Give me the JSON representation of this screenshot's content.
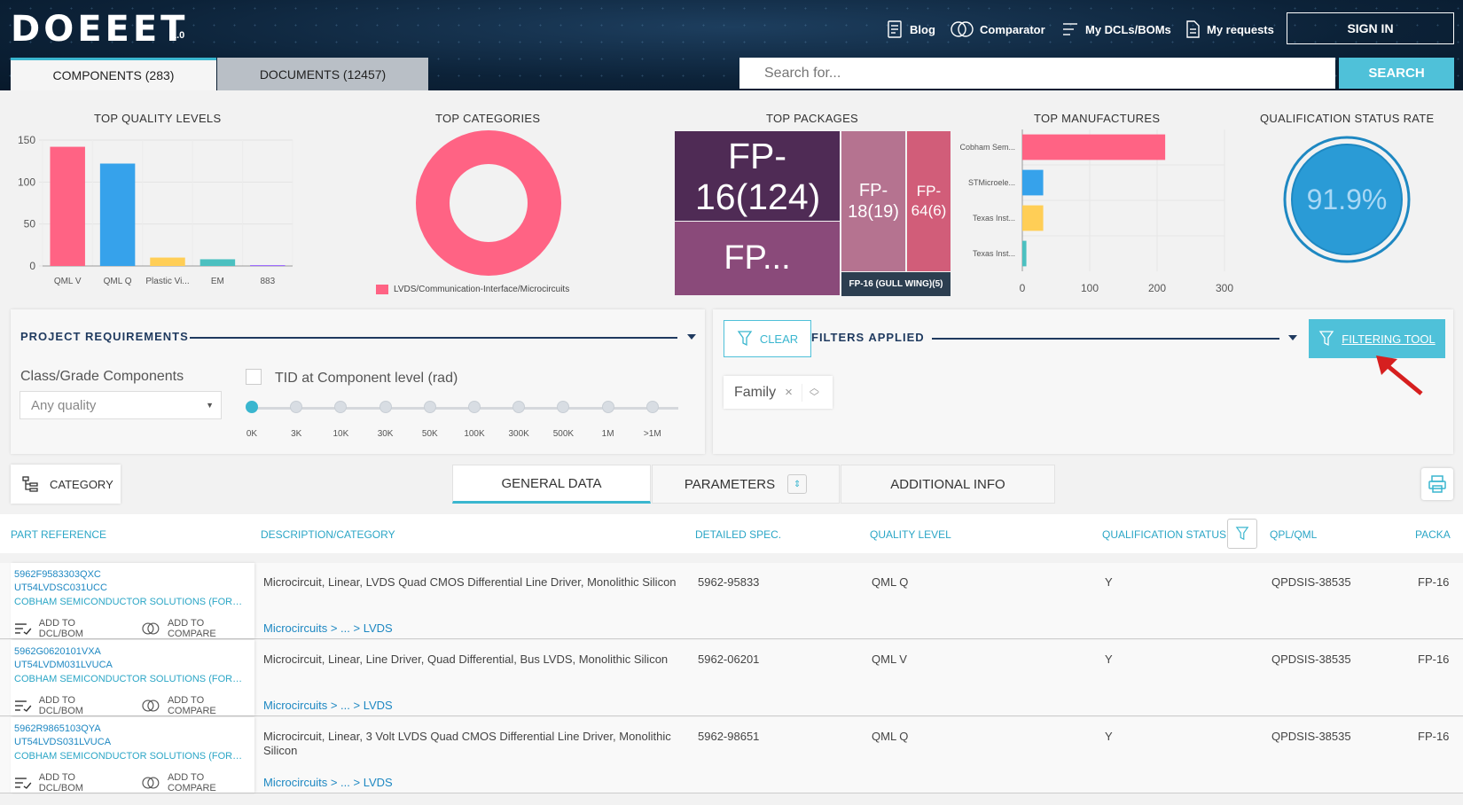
{
  "header": {
    "logo": "DOEEET",
    "version": "1.0",
    "nav": {
      "blog": "Blog",
      "comparator": "Comparator",
      "dcls": "My DCLs/BOMs",
      "requests": "My requests"
    },
    "signin": "SIGN IN",
    "tabs": {
      "components": "COMPONENTS (283)",
      "documents": "DOCUMENTS (12457)"
    },
    "search": {
      "placeholder": "Search for...",
      "button": "SEARCH"
    }
  },
  "dashboard": {
    "quality_title": "TOP QUALITY LEVELS",
    "categories_title": "TOP CATEGORIES",
    "packages_title": "TOP PACKAGES",
    "manufacturers_title": "TOP MANUFACTURES",
    "qualification_title": "QUALIFICATION STATUS RATE",
    "qualification_value": "91.9%",
    "legend_category": "LVDS/Communication-Interface/Microcircuits",
    "packages": {
      "p1": "FP-16(124)",
      "p2": "FP...",
      "p3": "FP-18(19)",
      "p4": "FP-64(6)",
      "p5": "FP-16 (GULL WING)(5)"
    }
  },
  "chart_data": [
    {
      "type": "bar",
      "title": "TOP QUALITY LEVELS",
      "categories": [
        "QML V",
        "QML Q",
        "Plastic Vi...",
        "EM",
        "883"
      ],
      "values": [
        142,
        122,
        10,
        8,
        1
      ],
      "colors": [
        "#ff6384",
        "#36a2eb",
        "#ffce56",
        "#4bc0c0",
        "#9966ff"
      ],
      "yticks": [
        0,
        50,
        100,
        150
      ],
      "ylim": [
        0,
        150
      ]
    },
    {
      "type": "pie",
      "title": "TOP CATEGORIES",
      "categories": [
        "LVDS/Communication-Interface/Microcircuits"
      ],
      "values": [
        283
      ],
      "colors": [
        "#ff6384"
      ]
    },
    {
      "type": "bar",
      "orientation": "horizontal",
      "title": "TOP MANUFACTURES",
      "categories": [
        "Cobham Sem...",
        "STMicroele...",
        "Texas Inst...",
        "Texas Inst..."
      ],
      "values": [
        212,
        31,
        31,
        6
      ],
      "colors": [
        "#ff6384",
        "#36a2eb",
        "#ffce56",
        "#4bc0c0"
      ],
      "xticks": [
        0,
        100,
        200,
        300
      ],
      "xlim": [
        0,
        300
      ]
    }
  ],
  "requirements": {
    "title": "PROJECT REQUIREMENTS",
    "class_label": "Class/Grade Components",
    "class_value": "Any quality",
    "tid_label": "TID at Component level (rad)",
    "ticks": [
      "0K",
      "3K",
      "10K",
      "30K",
      "50K",
      "100K",
      "300K",
      "500K",
      "1M",
      ">1M"
    ]
  },
  "filters": {
    "clear": "CLEAR",
    "title": "FILTERS APPLIED",
    "tool": "FILTERING TOOL",
    "chip": "Family",
    "chip_close": "×"
  },
  "table_tabs": {
    "category": "CATEGORY",
    "general": "GENERAL DATA",
    "parameters": "PARAMETERS",
    "additional": "ADDITIONAL INFO"
  },
  "columns": {
    "part": "PART REFERENCE",
    "desc": "DESCRIPTION/CATEGORY",
    "spec": "DETAILED SPEC.",
    "quality": "QUALITY LEVEL",
    "status": "QUALIFICATION STATUS",
    "qpl": "QPL/QML",
    "package": "PACKA"
  },
  "actions": {
    "dcl": "ADD TO DCL/BOM",
    "compare": "ADD TO COMPARE"
  },
  "rows": [
    {
      "ref1": "5962F9583303QXC",
      "ref2": "UT54LVDSC031UCC",
      "mfr": "COBHAM SEMICONDUCTOR SOLUTIONS (FORMERLY AEROFLEX)",
      "desc": "Microcircuit, Linear, LVDS Quad CMOS Differential Line Driver, Monolithic Silicon",
      "cat": "Microcircuits >  ...  > LVDS",
      "spec": "5962-95833",
      "quality": "QML Q",
      "status": "Y",
      "qpl": "QPDSIS-38535",
      "package": "FP-16"
    },
    {
      "ref1": "5962G0620101VXA",
      "ref2": "UT54LVDM031LVUCA",
      "mfr": "COBHAM SEMICONDUCTOR SOLUTIONS (FORMERLY AEROFLEX)",
      "desc": "Microcircuit, Linear, Line Driver, Quad Differential, Bus LVDS, Monolithic Silicon",
      "cat": "Microcircuits >  ...  > LVDS",
      "spec": "5962-06201",
      "quality": "QML V",
      "status": "Y",
      "qpl": "QPDSIS-38535",
      "package": "FP-16"
    },
    {
      "ref1": "5962R9865103QYA",
      "ref2": "UT54LVDS031LVUCA",
      "mfr": "COBHAM SEMICONDUCTOR SOLUTIONS (FORMERLY AEROFLEX)",
      "desc": "Microcircuit, Linear, 3 Volt LVDS Quad CMOS Differential Line Driver, Monolithic Silicon",
      "cat": "Microcircuits >  ...  > LVDS",
      "spec": "5962-98651",
      "quality": "QML Q",
      "status": "Y",
      "qpl": "QPDSIS-38535",
      "package": "FP-16"
    }
  ]
}
